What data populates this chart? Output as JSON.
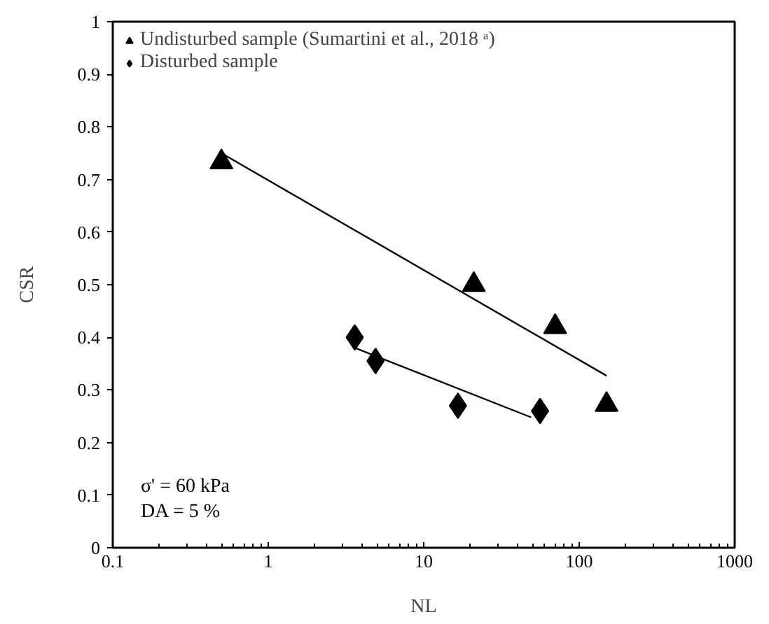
{
  "chart_data": {
    "type": "scatter",
    "xlabel": "NL",
    "ylabel": "CSR",
    "log": "x",
    "xlim": [
      0.1,
      1000
    ],
    "ylim": [
      0,
      1
    ],
    "xticks": [
      0.1,
      1,
      10,
      100,
      1000
    ],
    "yticks": [
      0,
      0.1,
      0.2,
      0.3,
      0.4,
      0.5,
      0.6,
      0.7,
      0.8,
      0.9,
      1
    ],
    "grid": false,
    "legend": "top left",
    "series": [
      {
        "name": "Undisturbed sample (Sumartini et al., 2018 ᵃ)",
        "color": "#000000",
        "marker": "triangle",
        "x": [
          0.5,
          21,
          70,
          150
        ],
        "values": [
          0.733,
          0.5,
          0.42,
          0.272
        ]
      },
      {
        "name": "Disturbed sample",
        "color": "#000000",
        "marker": "diamond",
        "x": [
          3.6,
          4.9,
          16.6,
          56
        ],
        "values": [
          0.4,
          0.355,
          0.27,
          0.26
        ]
      },
      {
        "type": "line",
        "color": "#000000",
        "marker": "none",
        "x": [
          0.5,
          150
        ],
        "values": [
          0.75,
          0.327
        ]
      },
      {
        "type": "line",
        "color": "#000000",
        "marker": "none",
        "x": [
          3.6,
          49
        ],
        "values": [
          0.38,
          0.248
        ]
      }
    ],
    "annotations": [
      "σ' = 60 kPa",
      "DA = 5 %"
    ]
  }
}
